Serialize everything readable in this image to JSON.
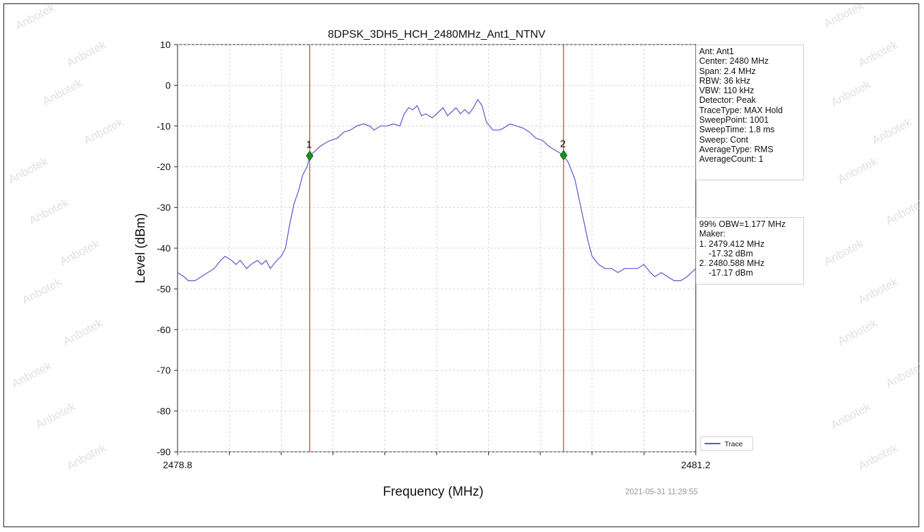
{
  "chart_data": {
    "type": "line",
    "title": "8DPSK_3DH5_HCH_2480MHz_Ant1_NTNV",
    "xlabel": "Frequency (MHz)",
    "ylabel": "Level (dBm)",
    "xlim": [
      2478.8,
      2481.2
    ],
    "ylim": [
      -90,
      10
    ],
    "x_tick_labels": [
      "2478.8",
      "2481.2"
    ],
    "y_ticks": [
      10,
      0,
      -10,
      -20,
      -30,
      -40,
      -50,
      -60,
      -70,
      -80,
      -90
    ],
    "grid": true,
    "legend_position": "bottom-right",
    "series": [
      {
        "name": "Trace",
        "color": "#5555cc",
        "points": [
          [
            2478.8,
            -46
          ],
          [
            2478.83,
            -47
          ],
          [
            2478.85,
            -48
          ],
          [
            2478.88,
            -48
          ],
          [
            2478.91,
            -47
          ],
          [
            2478.94,
            -46
          ],
          [
            2478.97,
            -45
          ],
          [
            2479.0,
            -43
          ],
          [
            2479.02,
            -42
          ],
          [
            2479.05,
            -43
          ],
          [
            2479.07,
            -44
          ],
          [
            2479.09,
            -43
          ],
          [
            2479.12,
            -45
          ],
          [
            2479.14,
            -44
          ],
          [
            2479.17,
            -43
          ],
          [
            2479.19,
            -44
          ],
          [
            2479.21,
            -43
          ],
          [
            2479.23,
            -45
          ],
          [
            2479.26,
            -43
          ],
          [
            2479.28,
            -42
          ],
          [
            2479.3,
            -40
          ],
          [
            2479.32,
            -34
          ],
          [
            2479.34,
            -29
          ],
          [
            2479.36,
            -26
          ],
          [
            2479.38,
            -22
          ],
          [
            2479.4,
            -20
          ],
          [
            2479.412,
            -17.32
          ],
          [
            2479.44,
            -16
          ],
          [
            2479.46,
            -15
          ],
          [
            2479.49,
            -14
          ],
          [
            2479.51,
            -13.5
          ],
          [
            2479.54,
            -13
          ],
          [
            2479.57,
            -11.5
          ],
          [
            2479.6,
            -11
          ],
          [
            2479.63,
            -10
          ],
          [
            2479.66,
            -9.5
          ],
          [
            2479.69,
            -10
          ],
          [
            2479.71,
            -11
          ],
          [
            2479.74,
            -10
          ],
          [
            2479.77,
            -10
          ],
          [
            2479.8,
            -9.5
          ],
          [
            2479.83,
            -10
          ],
          [
            2479.85,
            -7
          ],
          [
            2479.87,
            -5.5
          ],
          [
            2479.89,
            -6
          ],
          [
            2479.91,
            -5
          ],
          [
            2479.93,
            -7.5
          ],
          [
            2479.95,
            -7
          ],
          [
            2479.98,
            -8
          ],
          [
            2480.01,
            -6.5
          ],
          [
            2480.03,
            -5.5
          ],
          [
            2480.05,
            -7.5
          ],
          [
            2480.07,
            -6.5
          ],
          [
            2480.09,
            -5.5
          ],
          [
            2480.11,
            -7
          ],
          [
            2480.13,
            -6
          ],
          [
            2480.15,
            -7
          ],
          [
            2480.17,
            -5.5
          ],
          [
            2480.19,
            -3.5
          ],
          [
            2480.21,
            -5
          ],
          [
            2480.23,
            -9
          ],
          [
            2480.26,
            -11
          ],
          [
            2480.29,
            -11
          ],
          [
            2480.31,
            -10.5
          ],
          [
            2480.34,
            -9.5
          ],
          [
            2480.37,
            -10
          ],
          [
            2480.4,
            -10.5
          ],
          [
            2480.43,
            -11.5
          ],
          [
            2480.46,
            -13
          ],
          [
            2480.49,
            -13.5
          ],
          [
            2480.52,
            -15
          ],
          [
            2480.55,
            -16
          ],
          [
            2480.588,
            -17.17
          ],
          [
            2480.61,
            -19
          ],
          [
            2480.64,
            -23
          ],
          [
            2480.66,
            -28
          ],
          [
            2480.68,
            -33
          ],
          [
            2480.7,
            -38
          ],
          [
            2480.72,
            -42
          ],
          [
            2480.75,
            -44
          ],
          [
            2480.78,
            -45
          ],
          [
            2480.81,
            -45
          ],
          [
            2480.84,
            -46
          ],
          [
            2480.87,
            -45
          ],
          [
            2480.9,
            -45
          ],
          [
            2480.93,
            -45
          ],
          [
            2480.96,
            -44
          ],
          [
            2480.99,
            -46
          ],
          [
            2481.01,
            -47
          ],
          [
            2481.04,
            -46
          ],
          [
            2481.07,
            -47
          ],
          [
            2481.1,
            -48
          ],
          [
            2481.13,
            -48
          ],
          [
            2481.16,
            -47
          ],
          [
            2481.2,
            -45
          ]
        ]
      }
    ],
    "markers": [
      {
        "label": "1",
        "x": 2479.412,
        "y": -17.32
      },
      {
        "label": "2",
        "x": 2480.588,
        "y": -17.17
      }
    ],
    "marker_color": "#1e8c1e",
    "vline_color": "#cc3333"
  },
  "info_panel": {
    "lines": [
      "Ant: Ant1",
      "Center: 2480 MHz",
      "Span: 2.4 MHz",
      "RBW: 36 kHz",
      "VBW: 110 kHz",
      "Detector: Peak",
      "TraceType: MAX Hold",
      "SweepPoint: 1001",
      "SweepTime: 1.8 ms",
      "Sweep: Cont",
      "AverageType: RMS",
      "AverageCount: 1"
    ]
  },
  "obw_panel": {
    "lines": [
      "99% OBW=1.177 MHz",
      "Maker:",
      "1. 2479.412 MHz",
      "    -17.32 dBm",
      "2. 2480.588 MHz",
      "    -17.17 dBm"
    ]
  },
  "timestamp": "2021-05-31 11:29:55",
  "watermark": "Anbotek"
}
